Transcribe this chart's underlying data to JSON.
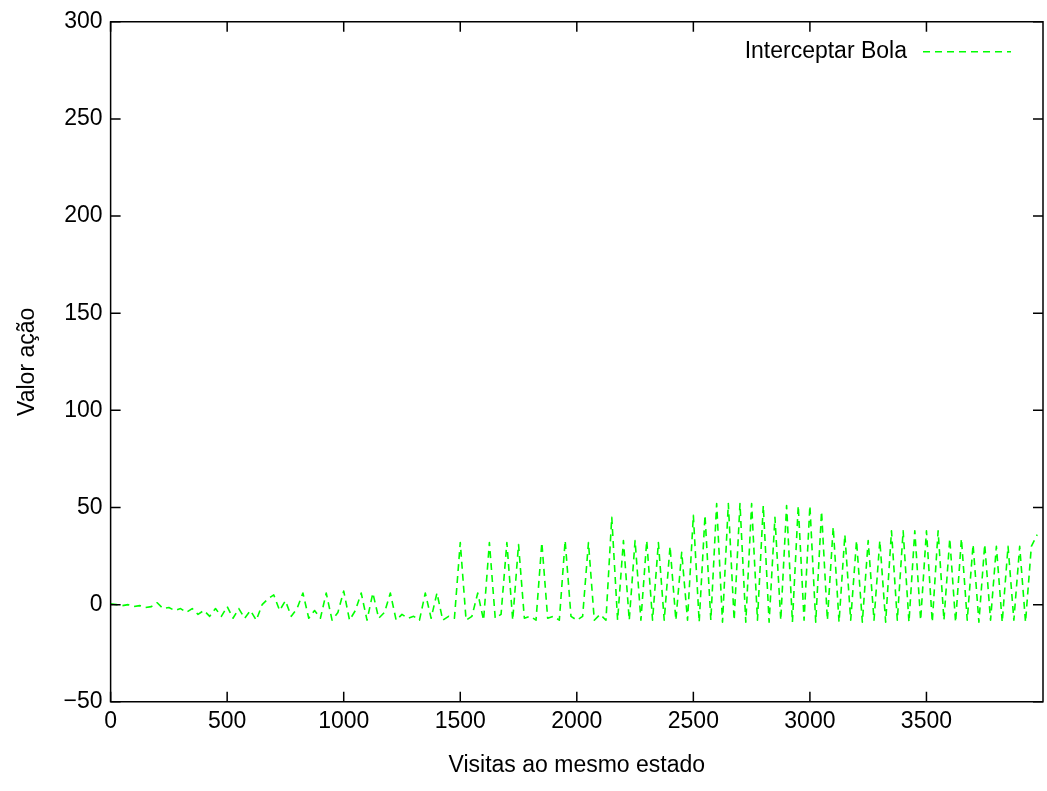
{
  "chart_data": {
    "type": "line",
    "xlabel": "Visitas ao mesmo estado",
    "ylabel": "Valor ação",
    "x": [
      0,
      25,
      50,
      75,
      100,
      125,
      150,
      175,
      200,
      225,
      250,
      275,
      300,
      325,
      350,
      375,
      400,
      425,
      450,
      475,
      500,
      525,
      550,
      575,
      600,
      625,
      650,
      675,
      700,
      725,
      750,
      775,
      800,
      825,
      850,
      875,
      900,
      925,
      950,
      975,
      1000,
      1025,
      1050,
      1075,
      1100,
      1125,
      1150,
      1175,
      1200,
      1225,
      1250,
      1275,
      1300,
      1325,
      1350,
      1375,
      1400,
      1425,
      1450,
      1475,
      1500,
      1525,
      1550,
      1575,
      1600,
      1625,
      1650,
      1675,
      1700,
      1725,
      1750,
      1775,
      1800,
      1825,
      1850,
      1875,
      1900,
      1925,
      1950,
      1975,
      2000,
      2025,
      2050,
      2075,
      2100,
      2125,
      2150,
      2175,
      2200,
      2225,
      2250,
      2275,
      2300,
      2325,
      2350,
      2375,
      2400,
      2425,
      2450,
      2475,
      2500,
      2525,
      2550,
      2575,
      2600,
      2625,
      2650,
      2675,
      2700,
      2725,
      2750,
      2775,
      2800,
      2825,
      2850,
      2875,
      2900,
      2925,
      2950,
      2975,
      3000,
      3025,
      3050,
      3075,
      3100,
      3125,
      3150,
      3175,
      3200,
      3225,
      3250,
      3275,
      3300,
      3325,
      3350,
      3375,
      3400,
      3425,
      3450,
      3475,
      3500,
      3525,
      3550,
      3575,
      3600,
      3625,
      3650,
      3675,
      3700,
      3725,
      3750,
      3775,
      3800,
      3825,
      3850,
      3875,
      3900,
      3925,
      3950,
      3975
    ],
    "series": [
      {
        "name": "Interceptar Bola",
        "color": "#00ff00",
        "values": [
          0.5,
          0,
          -0.5,
          0,
          -1,
          -0.5,
          -1.5,
          -1,
          1,
          -2,
          -1.5,
          -3,
          -2,
          -4,
          -2,
          -5,
          -3,
          -6,
          -2,
          -6,
          -1,
          -7,
          -2,
          -7,
          -3,
          -8,
          0,
          3,
          5,
          -3,
          2,
          -6,
          -2,
          6,
          -7,
          -3,
          -7,
          6,
          -8,
          -4,
          7,
          -8,
          -3,
          6,
          -8,
          6,
          -7,
          -4,
          6,
          -8,
          -5,
          -7,
          -6,
          -8,
          6,
          -7,
          6,
          -8,
          -6,
          -7,
          32,
          -8,
          -6,
          6,
          -8,
          32,
          -7,
          -5,
          32,
          -8,
          31,
          -7,
          -6,
          -8,
          32,
          -7,
          -6,
          -8,
          33,
          -6,
          -8,
          -6,
          32,
          -8,
          -5,
          -8,
          45,
          -8,
          33,
          -8,
          33,
          -8,
          33,
          -8,
          32,
          -8,
          30,
          -8,
          27,
          -8,
          46,
          -9,
          46,
          -8,
          52,
          -9,
          52,
          -8,
          52,
          -9,
          52,
          -8,
          51,
          -9,
          45,
          -8,
          51,
          -9,
          51,
          -8,
          51,
          -9,
          48,
          -8,
          40,
          -9,
          36,
          -8,
          33,
          -9,
          33,
          -8,
          33,
          -9,
          38,
          -8,
          38,
          -9,
          38,
          -8,
          38,
          -9,
          38,
          -8,
          34,
          -9,
          34,
          -8,
          31,
          -9,
          31,
          -8,
          30,
          -9,
          30,
          -8,
          30,
          -9,
          30,
          36
        ]
      }
    ],
    "xlim": [
      0,
      4000
    ],
    "ylim": [
      -50,
      300
    ],
    "xticks": [
      0,
      500,
      1000,
      1500,
      2000,
      2500,
      3000,
      3500
    ],
    "yticks": [
      -50,
      0,
      50,
      100,
      150,
      200,
      250,
      300
    ],
    "legend": "top right",
    "line_style": "dashed",
    "marker": "none"
  }
}
